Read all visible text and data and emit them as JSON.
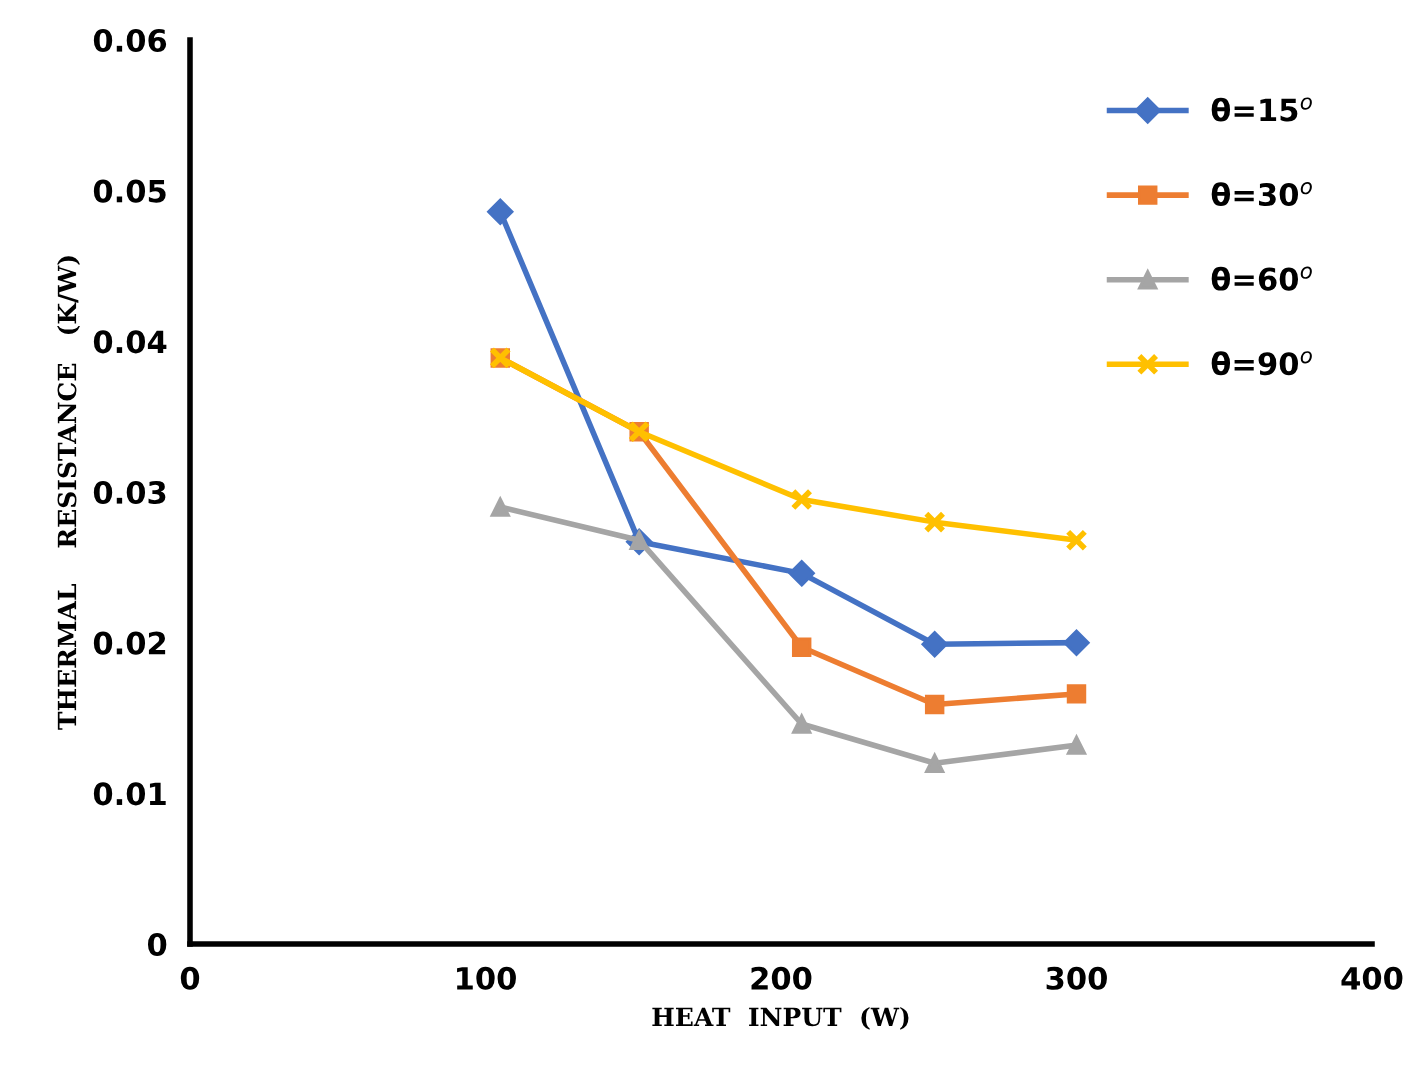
{
  "chart_data": {
    "type": "line",
    "xlabel": "HEAT  INPUT  (W)",
    "ylabel": "THERMAL    RESISTANCE   (K/W)",
    "x": [
      105,
      152,
      207,
      252,
      300
    ],
    "series": [
      {
        "name": "θ=15$^{o}$",
        "color": "#4472c4",
        "marker": "diamond",
        "values": [
          0.0486,
          0.0267,
          0.0246,
          0.0199,
          0.02
        ]
      },
      {
        "name": "θ=30$^{o}$",
        "color": "#ed7d31",
        "marker": "square",
        "values": [
          0.0389,
          0.034,
          0.0197,
          0.0159,
          0.0166
        ]
      },
      {
        "name": "θ=60$^{o}$",
        "color": "#a5a5a5",
        "marker": "triangle",
        "values": [
          0.029,
          0.0268,
          0.0146,
          0.012,
          0.0132
        ]
      },
      {
        "name": "θ=90$^{o}$",
        "color": "#ffc000",
        "marker": "cross",
        "values": [
          0.0389,
          0.034,
          0.0295,
          0.028,
          0.0268
        ]
      }
    ],
    "xlim": [
      0,
      400
    ],
    "xticks": [
      0,
      100,
      200,
      300,
      400
    ],
    "ylim": [
      0,
      0.06
    ],
    "yticks": [
      {
        "value": 0,
        "label": "0"
      },
      0.01,
      0.02,
      0.03,
      0.04,
      0.05,
      0.06
    ],
    "grid": false,
    "legend": "top right",
    "line_style": "solid"
  }
}
